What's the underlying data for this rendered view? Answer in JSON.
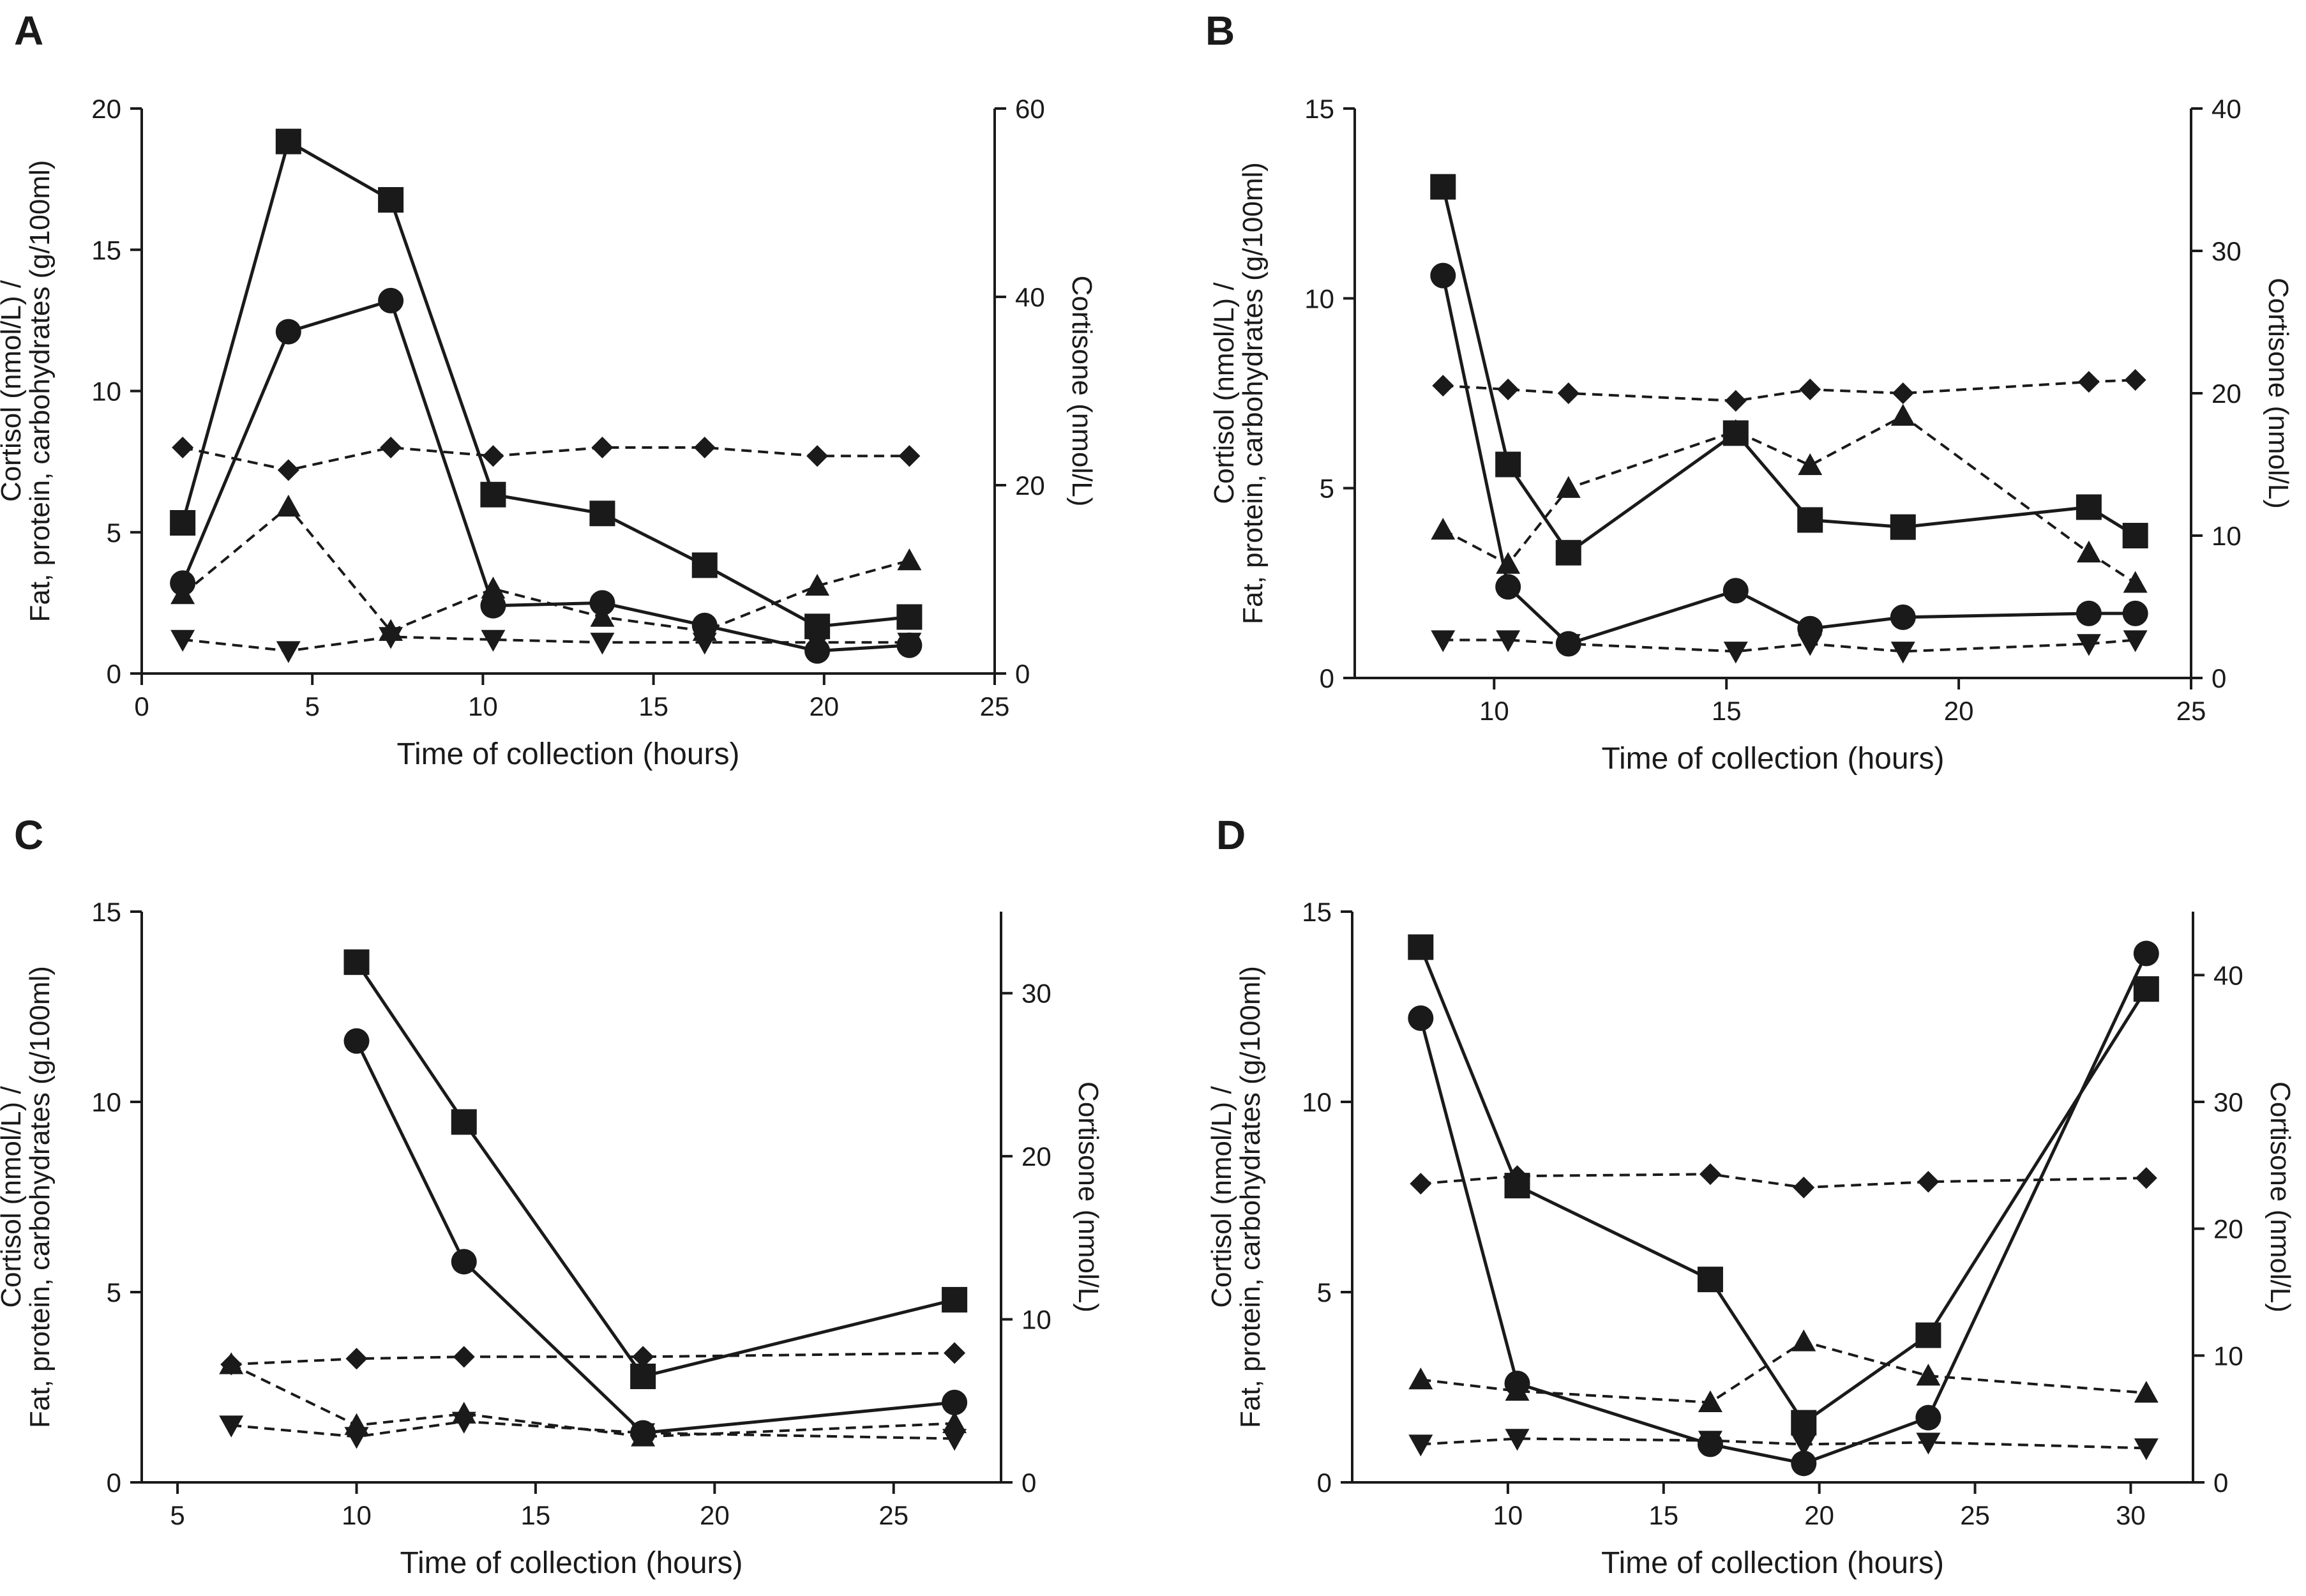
{
  "figure": {
    "description_colors": {
      "ink": "#1a1a1a",
      "background": "#ffffff"
    }
  },
  "chart_data": [
    {
      "panel": "A",
      "type": "line",
      "xlabel": "Time of collection (hours)",
      "ylabel_line1": "Fat, protein, carbohydrates (g/100ml)",
      "ylabel_line2": "Cortisol (nmol/L) /",
      "y2label": "Cortisone (nmol/L)",
      "xlim": [
        0,
        25
      ],
      "xticks": [
        0,
        5,
        10,
        15,
        20,
        25
      ],
      "ylim": [
        0,
        20
      ],
      "yticks": [
        0,
        5,
        10,
        15,
        20
      ],
      "y2lim": [
        0,
        60
      ],
      "y2ticks": [
        0,
        20,
        40,
        60
      ],
      "series": [
        {
          "name": "Cortisone",
          "marker": "square",
          "line": "solid",
          "axis": "right",
          "x": [
            1.2,
            4.3,
            7.3,
            10.3,
            13.5,
            16.5,
            19.8,
            22.5
          ],
          "y": [
            16,
            56.5,
            50.3,
            19,
            17,
            11.5,
            5,
            6
          ]
        },
        {
          "name": "Cortisol",
          "marker": "circle",
          "line": "solid",
          "axis": "left",
          "x": [
            1.2,
            4.3,
            7.3,
            10.3,
            13.5,
            16.5,
            19.8,
            22.5
          ],
          "y": [
            3.2,
            12.1,
            13.2,
            2.4,
            2.5,
            1.7,
            0.8,
            1.0
          ]
        },
        {
          "name": "Fat",
          "marker": "diamond",
          "line": "dashed",
          "axis": "left",
          "x": [
            1.2,
            4.3,
            7.3,
            10.3,
            13.5,
            16.5,
            19.8,
            22.5
          ],
          "y": [
            8.0,
            7.2,
            8.0,
            7.7,
            8.0,
            8.0,
            7.7,
            7.7
          ]
        },
        {
          "name": "Protein",
          "marker": "triangle-up",
          "line": "dashed",
          "axis": "left",
          "x": [
            1.2,
            4.3,
            7.3,
            10.3,
            13.5,
            16.5,
            19.8,
            22.5
          ],
          "y": [
            2.8,
            5.9,
            1.5,
            3.0,
            2.0,
            1.5,
            3.1,
            4.0
          ]
        },
        {
          "name": "Carbohydrates",
          "marker": "triangle-down",
          "line": "dashed",
          "axis": "left",
          "x": [
            1.2,
            4.3,
            7.3,
            10.3,
            13.5,
            16.5,
            19.8,
            22.5
          ],
          "y": [
            1.2,
            0.8,
            1.3,
            1.2,
            1.1,
            1.1,
            1.1,
            1.1
          ]
        }
      ]
    },
    {
      "panel": "B",
      "type": "line",
      "xlabel": "Time of collection (hours)",
      "ylabel_line1": "Fat, protein, carbohydrates (g/100ml)",
      "ylabel_line2": "Cortisol (nmol/L) /",
      "y2label": "Cortisone (nmol/L)",
      "xlim": [
        7,
        25
      ],
      "xticks": [
        10,
        15,
        20,
        25
      ],
      "ylim": [
        0,
        15
      ],
      "yticks": [
        0,
        5,
        10,
        15
      ],
      "y2lim": [
        0,
        40
      ],
      "y2ticks": [
        0,
        10,
        20,
        30,
        40
      ],
      "series": [
        {
          "name": "Cortisone",
          "marker": "square",
          "line": "solid",
          "axis": "right",
          "x": [
            8.9,
            10.3,
            11.6,
            15.2,
            16.8,
            18.8,
            22.8,
            23.8
          ],
          "y": [
            34.5,
            15,
            8.8,
            17.2,
            11.1,
            10.6,
            12,
            10
          ]
        },
        {
          "name": "Cortisol",
          "marker": "circle",
          "line": "solid",
          "axis": "left",
          "x": [
            8.9,
            10.3,
            11.6,
            15.2,
            16.8,
            18.8,
            22.8,
            23.8
          ],
          "y": [
            10.6,
            2.4,
            0.9,
            2.3,
            1.3,
            1.6,
            1.7,
            1.7
          ]
        },
        {
          "name": "Fat",
          "marker": "diamond",
          "line": "dashed",
          "axis": "left",
          "x": [
            8.9,
            10.3,
            11.6,
            15.2,
            16.8,
            18.8,
            22.8,
            23.8
          ],
          "y": [
            7.7,
            7.6,
            7.5,
            7.3,
            7.6,
            7.5,
            7.8,
            7.85
          ]
        },
        {
          "name": "Protein",
          "marker": "triangle-up",
          "line": "dashed",
          "axis": "left",
          "x": [
            8.9,
            10.3,
            11.6,
            15.2,
            16.8,
            18.8,
            22.8,
            23.8
          ],
          "y": [
            3.9,
            3.0,
            5.0,
            6.5,
            5.6,
            6.9,
            3.3,
            2.5
          ]
        },
        {
          "name": "Carbohydrates",
          "marker": "triangle-down",
          "line": "dashed",
          "axis": "left",
          "x": [
            8.9,
            10.3,
            11.6,
            15.2,
            16.8,
            18.8,
            22.8,
            23.8
          ],
          "y": [
            1.0,
            1.0,
            0.9,
            0.7,
            0.9,
            0.7,
            0.9,
            1.0
          ]
        }
      ]
    },
    {
      "panel": "C",
      "type": "line",
      "xlabel": "Time of collection (hours)",
      "ylabel_line1": "Fat, protein, carbohydrates (g/100ml)",
      "ylabel_line2": "Cortisol (nmol/L) /",
      "y2label": "Cortisone (nmol/L)",
      "xlim": [
        4,
        28
      ],
      "xticks": [
        5,
        10,
        15,
        20,
        25
      ],
      "ylim": [
        0,
        15
      ],
      "yticks": [
        0,
        5,
        10,
        15
      ],
      "y2lim": [
        0,
        35
      ],
      "y2ticks": [
        0,
        10,
        20,
        30
      ],
      "series": [
        {
          "name": "Cortisone",
          "marker": "square",
          "line": "solid",
          "axis": "right",
          "x": [
            10,
            13,
            18,
            26.7
          ],
          "y": [
            31.9,
            22.1,
            6.5,
            11.2
          ]
        },
        {
          "name": "Cortisol",
          "marker": "circle",
          "line": "solid",
          "axis": "left",
          "x": [
            10,
            13,
            18,
            26.7
          ],
          "y": [
            11.6,
            5.8,
            1.3,
            2.1
          ]
        },
        {
          "name": "Fat",
          "marker": "diamond",
          "line": "dashed",
          "axis": "left",
          "x": [
            6.5,
            10,
            13,
            18,
            26.7
          ],
          "y": [
            3.1,
            3.25,
            3.3,
            3.3,
            3.4
          ]
        },
        {
          "name": "Protein",
          "marker": "triangle-up",
          "line": "dashed",
          "axis": "left",
          "x": [
            6.5,
            10,
            13,
            18,
            26.7
          ],
          "y": [
            3.1,
            1.5,
            1.8,
            1.2,
            1.55
          ]
        },
        {
          "name": "Carbohydrates",
          "marker": "triangle-down",
          "line": "dashed",
          "axis": "left",
          "x": [
            6.5,
            10,
            13,
            18,
            26.7
          ],
          "y": [
            1.5,
            1.2,
            1.6,
            1.3,
            1.15
          ]
        }
      ]
    },
    {
      "panel": "D",
      "type": "line",
      "xlabel": "Time of collection (hours)",
      "ylabel_line1": "Fat, protein, carbohydrates (g/100ml)",
      "ylabel_line2": "Cortisol (nmol/L) /",
      "y2label": "Cortisone (nmol/L)",
      "xlim": [
        5,
        32
      ],
      "xticks": [
        10,
        15,
        20,
        25,
        30
      ],
      "ylim": [
        0,
        15
      ],
      "yticks": [
        0,
        5,
        10,
        15
      ],
      "y2lim": [
        0,
        45
      ],
      "y2ticks": [
        0,
        10,
        20,
        30,
        40
      ],
      "series": [
        {
          "name": "Cortisone",
          "marker": "square",
          "line": "solid",
          "axis": "right",
          "x": [
            7.2,
            10.3,
            16.5,
            19.5,
            23.5,
            30.5
          ],
          "y": [
            42.2,
            23.4,
            16,
            4.7,
            11.6,
            38.9
          ]
        },
        {
          "name": "Cortisol",
          "marker": "circle",
          "line": "solid",
          "axis": "left",
          "x": [
            7.2,
            10.3,
            16.5,
            19.5,
            23.5,
            30.5
          ],
          "y": [
            12.2,
            2.6,
            1.0,
            0.5,
            1.7,
            13.9
          ]
        },
        {
          "name": "Fat",
          "marker": "diamond",
          "line": "dashed",
          "axis": "left",
          "x": [
            7.2,
            10.3,
            16.5,
            19.5,
            23.5,
            30.5
          ],
          "y": [
            7.85,
            8.05,
            8.1,
            7.75,
            7.9,
            8.0
          ]
        },
        {
          "name": "Protein",
          "marker": "triangle-up",
          "line": "dashed",
          "axis": "left",
          "x": [
            7.2,
            10.3,
            16.5,
            19.5,
            23.5,
            30.5
          ],
          "y": [
            2.7,
            2.4,
            2.1,
            3.7,
            2.8,
            2.35
          ]
        },
        {
          "name": "Carbohydrates",
          "marker": "triangle-down",
          "line": "dashed",
          "axis": "left",
          "x": [
            7.2,
            10.3,
            16.5,
            19.5,
            23.5,
            30.5
          ],
          "y": [
            1.0,
            1.15,
            1.1,
            1.0,
            1.05,
            0.9
          ]
        }
      ]
    }
  ]
}
